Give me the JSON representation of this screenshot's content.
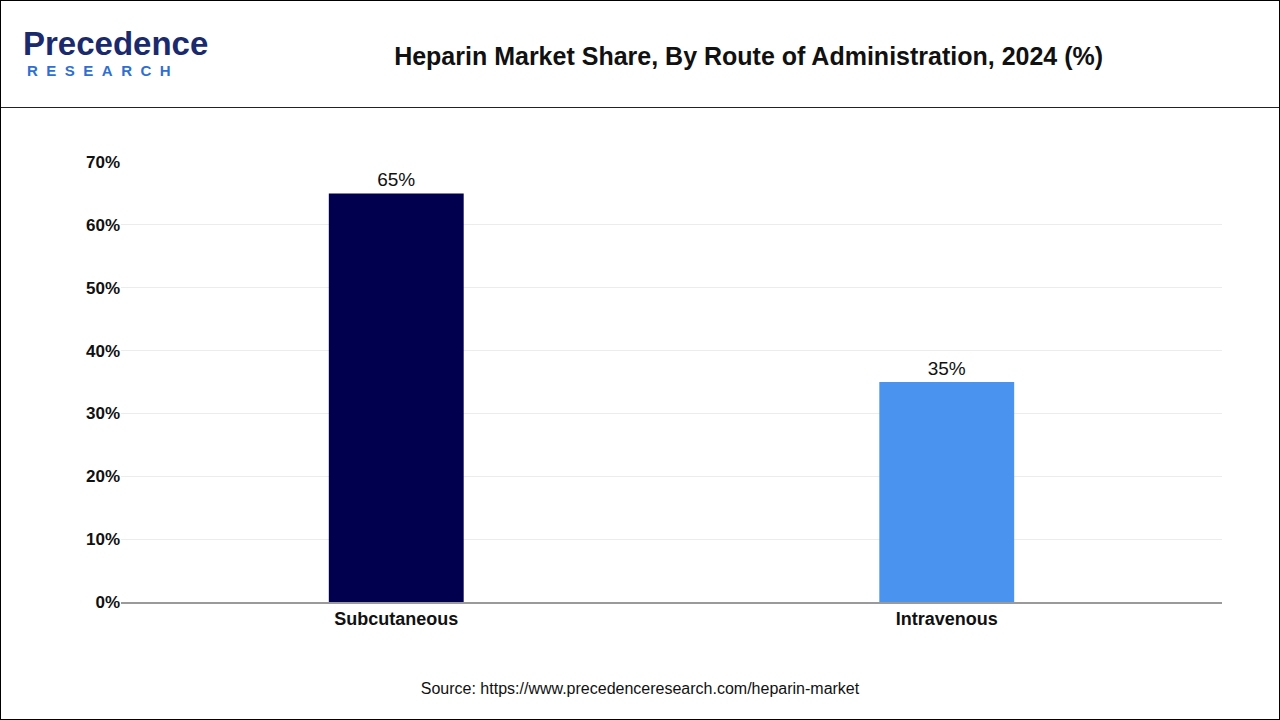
{
  "logo": {
    "name": "Precedence",
    "subtitle": "RESEARCH"
  },
  "source": "Source: https://www.precedenceresearch.com/heparin-market",
  "chart_data": {
    "type": "bar",
    "title": "Heparin Market Share, By Route of Administration, 2024 (%)",
    "categories": [
      "Subcutaneous",
      "Intravenous"
    ],
    "values": [
      65,
      35
    ],
    "value_labels": [
      "65%",
      "35%"
    ],
    "colors": [
      "#00004f",
      "#4a94ef"
    ],
    "ylim": [
      0,
      70
    ],
    "yticks": [
      {
        "value": 0,
        "label": "0%"
      },
      {
        "value": 10,
        "label": "10%"
      },
      {
        "value": 20,
        "label": "20%"
      },
      {
        "value": 30,
        "label": "30%"
      },
      {
        "value": 40,
        "label": "40%"
      },
      {
        "value": 50,
        "label": "50%"
      },
      {
        "value": 60,
        "label": "60%"
      },
      {
        "value": 70,
        "label": "70%"
      }
    ],
    "grid": true,
    "data_labels": true
  }
}
